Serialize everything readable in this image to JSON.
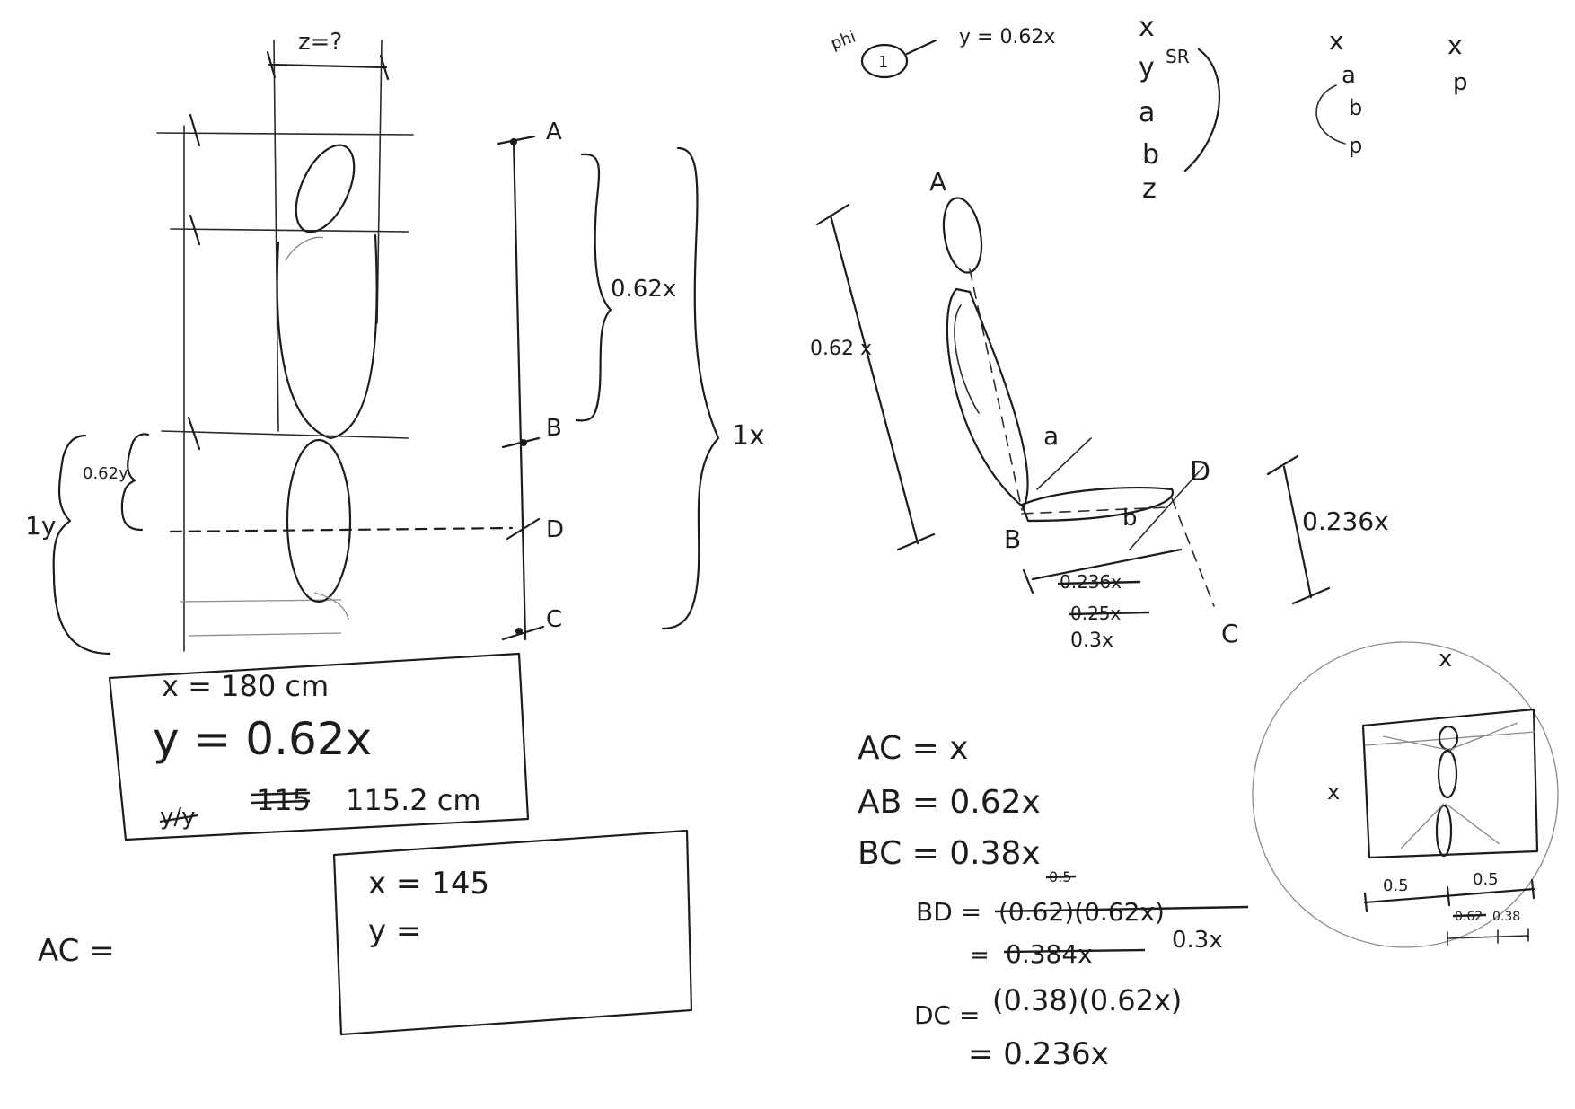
{
  "left_diagram": {
    "width_label": "z=?",
    "points": [
      "A",
      "B",
      "D",
      "C"
    ],
    "brace_ab": "0.62x",
    "brace_ac": "1x",
    "brace_left_outer": "1y",
    "brace_left_inner": "0.62y"
  },
  "box_180": {
    "line1": "x = 180 cm",
    "line2": "y = 0.62x",
    "line3_struck": "115",
    "line3_value": "115.2 cm",
    "line3_fraction": "y/y"
  },
  "box_145": {
    "line1": "x = 145",
    "line2": "y ="
  },
  "ac_left": "AC =",
  "phi_note": {
    "label": "phi",
    "circle": "1",
    "text": "y = 0.62x"
  },
  "var_list_1": [
    "x",
    "y",
    "a",
    "b",
    "z"
  ],
  "var_list_1_loop": "SR",
  "var_list_2": [
    "x",
    "a",
    "b",
    "p"
  ],
  "var_list_3": [
    "x",
    "p"
  ],
  "seated": {
    "points": [
      "A",
      "B",
      "D",
      "C"
    ],
    "height_label": "0.62 x",
    "seg_a": "a",
    "seg_b": "b",
    "right_label": "0.236x",
    "thigh_struck_1": "0.236x",
    "thigh_struck_2": "0.25x",
    "thigh_value": "0.3x"
  },
  "equations": {
    "ac": "AC = x",
    "ab": "AB = 0.62x",
    "bc": "BC = 0.38x",
    "bd_label": "BD =",
    "bd_struck": "(0.62)(0.62x)",
    "bd_struck_note": "0.5",
    "bd_line2_struck": "0.384x",
    "bd_value": "0.3x",
    "dc_label": "DC =",
    "dc_expr": "(0.38)(0.62x)",
    "dc_value": "= 0.236x"
  },
  "vitruvian": {
    "top_label": "x",
    "side_label": "x",
    "half_left": "0.5",
    "half_right": "0.5",
    "scale_struck": "0.62",
    "scale_value": "0.38"
  }
}
